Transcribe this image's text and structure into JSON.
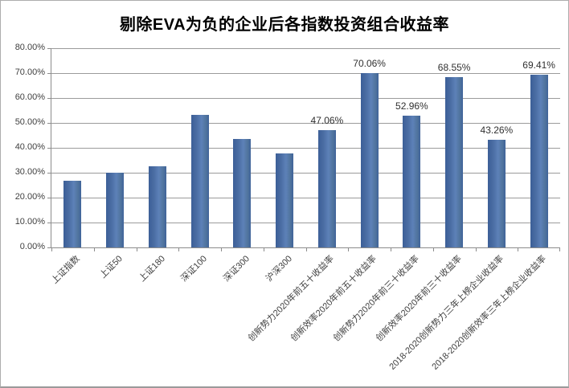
{
  "chart_data": {
    "type": "bar",
    "title": "剔除EVA为负的企业后各指数投资组合收益率",
    "categories": [
      "上证指数",
      "上证50",
      "上证180",
      "深证100",
      "深证300",
      "沪深300",
      "创新势力2020年前五十收益率",
      "创新效率2020年前五十收益率",
      "创新势力2020年前三十收益率",
      "创新效率2020年前三十收益率",
      "2018-2020创新势力三年上榜企业收益率",
      "2018-2020创新效率三年上榜企业收益率"
    ],
    "values": [
      26.9,
      30.0,
      32.5,
      53.3,
      43.6,
      37.7,
      47.06,
      70.06,
      52.96,
      68.55,
      43.26,
      69.41
    ],
    "data_labels": [
      "",
      "",
      "",
      "",
      "",
      "",
      "47.06%",
      "70.06%",
      "52.96%",
      "68.55%",
      "43.26%",
      "69.41%"
    ],
    "xlabel": "",
    "ylabel": "",
    "ylim": [
      0,
      80
    ],
    "ytick_labels": [
      "0.00%",
      "10.00%",
      "20.00%",
      "30.00%",
      "40.00%",
      "50.00%",
      "60.00%",
      "70.00%",
      "80.00%"
    ],
    "grid": true,
    "legend_position": "none",
    "bar_color": "#4a6da3",
    "bar_gradient": [
      "#3c5f97",
      "#5d81b8"
    ],
    "gridline_color": "#9b9b9b",
    "axis_color": "#8c8c8c",
    "label_color": "#3f3f3f",
    "title_color": "#000000"
  }
}
